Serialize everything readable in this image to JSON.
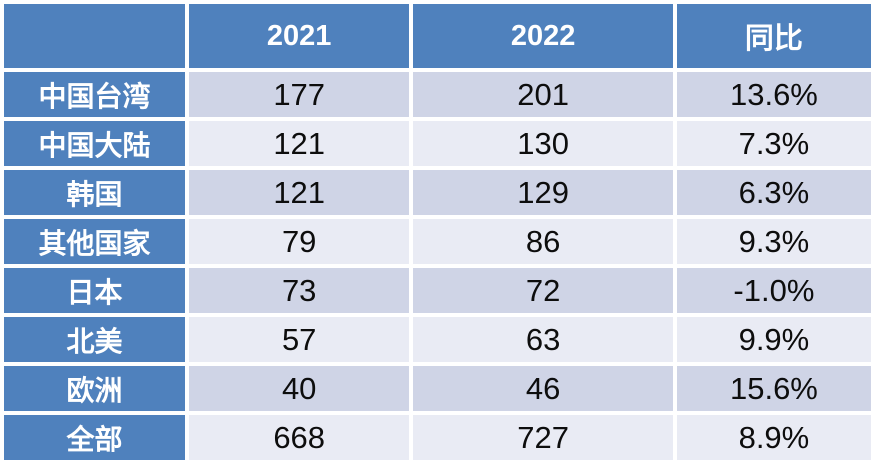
{
  "table": {
    "columns": {
      "label": "",
      "y2021": "2021",
      "y2022": "2022",
      "yoy": "同比"
    },
    "rows": [
      {
        "label": "中国台湾",
        "y2021": "177",
        "y2022": "201",
        "yoy": "13.6%"
      },
      {
        "label": "中国大陆",
        "y2021": "121",
        "y2022": "130",
        "yoy": "7.3%"
      },
      {
        "label": "韩国",
        "y2021": "121",
        "y2022": "129",
        "yoy": "6.3%"
      },
      {
        "label": "其他国家",
        "y2021": "79",
        "y2022": "86",
        "yoy": "9.3%"
      },
      {
        "label": "日本",
        "y2021": "73",
        "y2022": "72",
        "yoy": "-1.0%"
      },
      {
        "label": "北美",
        "y2021": "57",
        "y2022": "63",
        "yoy": "9.9%"
      },
      {
        "label": "欧洲",
        "y2021": "40",
        "y2022": "46",
        "yoy": "15.6%"
      },
      {
        "label": "全部",
        "y2021": "668",
        "y2022": "727",
        "yoy": "8.9%"
      }
    ]
  },
  "colors": {
    "header_bg": "#4f81bd",
    "label_column_bg": "#4f81bd",
    "band_dark": "#cfd4e6",
    "band_light": "#e9ebf4",
    "header_text": "#ffffff",
    "cell_text": "#0d0d0d",
    "grid_gap": "#ffffff"
  },
  "chart_data": {
    "type": "table",
    "title": "",
    "columns": [
      "",
      "2021",
      "2022",
      "同比"
    ],
    "categories": [
      "中国台湾",
      "中国大陆",
      "韩国",
      "其他国家",
      "日本",
      "北美",
      "欧洲",
      "全部"
    ],
    "series": [
      {
        "name": "2021",
        "values": [
          177,
          121,
          121,
          79,
          73,
          57,
          40,
          668
        ]
      },
      {
        "name": "2022",
        "values": [
          201,
          130,
          129,
          86,
          72,
          63,
          46,
          727
        ]
      },
      {
        "name": "同比",
        "values": [
          "13.6%",
          "7.3%",
          "6.3%",
          "9.3%",
          "-1.0%",
          "9.9%",
          "15.6%",
          "8.9%"
        ]
      }
    ]
  }
}
